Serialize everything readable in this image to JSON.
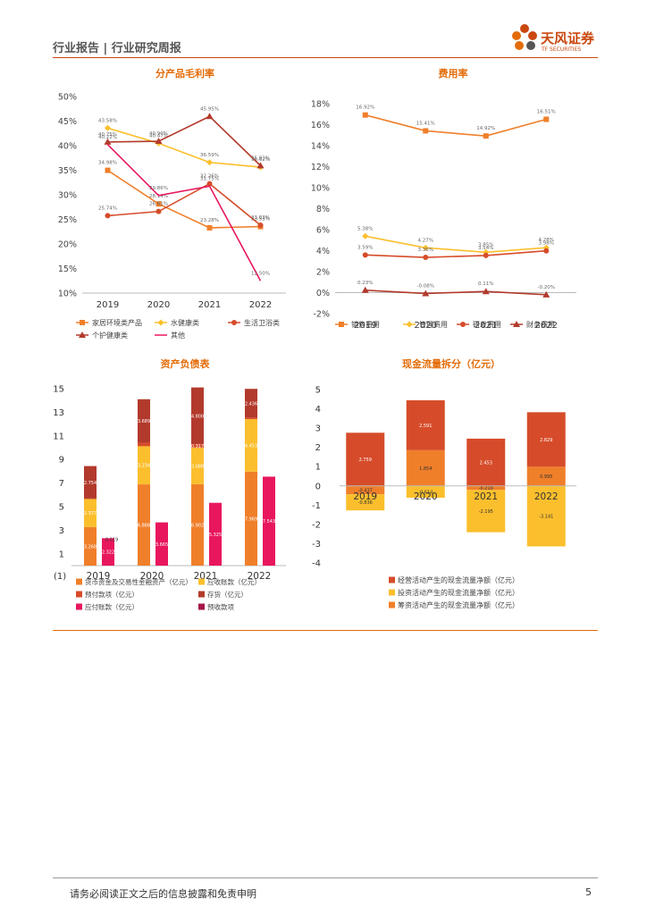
{
  "header": {
    "title": "行业报告 | 行业研究周报"
  },
  "logo": {
    "name_cn": "天风证券",
    "name_en": "TF SECURITIES"
  },
  "footer": {
    "disclaimer": "请务必阅读正文之后的信息披露和免责申明",
    "page": "5"
  },
  "colors": {
    "accent": "#e36c09",
    "brand": "#c9480f"
  },
  "chart_data": [
    {
      "id": "margin",
      "type": "line",
      "title": "分产品毛利率",
      "categories": [
        "2019",
        "2020",
        "2021",
        "2022"
      ],
      "y_ticks": [
        "50%",
        "45%",
        "40%",
        "35%",
        "30%",
        "25%",
        "20%",
        "15%",
        "10%"
      ],
      "ylim": [
        10,
        50
      ],
      "series": [
        {
          "name": "家居环境类产品",
          "color": "#f07f2a",
          "marker": "square",
          "values": [
            34.98,
            28.14,
            23.28,
            23.53
          ],
          "labels": [
            "34.98%",
            "28.14%",
            "23.28%",
            "23.53%"
          ]
        },
        {
          "name": "水健康类",
          "color": "#fbbf2d",
          "marker": "diamond",
          "values": [
            43.58,
            40.47,
            36.59,
            35.62
          ],
          "labels": [
            "43.58%",
            "40.47%",
            "36.59%",
            "35.62%"
          ]
        },
        {
          "name": "生活卫浴类",
          "color": "#d64c2a",
          "marker": "circle",
          "values": [
            25.74,
            26.61,
            32.26,
            23.82
          ],
          "labels": [
            "25.74%",
            "26.61%",
            "32.26%",
            "23.82%"
          ]
        },
        {
          "name": "个护健康类",
          "color": "#b23a2c",
          "marker": "triangle",
          "values": [
            40.75,
            40.9,
            45.95,
            35.93
          ],
          "labels": [
            "40.75%",
            "40.90%",
            "45.95%",
            "35.93%"
          ]
        },
        {
          "name": "其他",
          "color": "#e8175d",
          "marker": "none",
          "values": [
            40.22,
            29.86,
            31.75,
            12.5
          ],
          "labels": [
            "40.22%",
            "29.86%",
            "31.75%",
            "12.50%"
          ]
        }
      ]
    },
    {
      "id": "expense",
      "type": "line",
      "title": "费用率",
      "categories": [
        "2019",
        "2020",
        "2021",
        "2022"
      ],
      "y_ticks": [
        "18%",
        "16%",
        "14%",
        "12%",
        "10%",
        "8%",
        "6%",
        "4%",
        "2%",
        "0%",
        "-2%"
      ],
      "ylim": [
        -2,
        18
      ],
      "series": [
        {
          "name": "销售费用",
          "color": "#f07f2a",
          "marker": "square",
          "values": [
            16.92,
            15.41,
            14.92,
            16.51
          ],
          "labels": [
            "16.92%",
            "15.41%",
            "14.92%",
            "16.51%"
          ]
        },
        {
          "name": "管理费用",
          "color": "#fbbf2d",
          "marker": "diamond",
          "values": [
            5.38,
            4.27,
            3.85,
            4.28
          ],
          "labels": [
            "5.38%",
            "4.27%",
            "3.85%",
            "4.28%"
          ]
        },
        {
          "name": "研发费用",
          "color": "#d64c2a",
          "marker": "circle",
          "values": [
            3.59,
            3.36,
            3.54,
            3.98
          ],
          "labels": [
            "3.59%",
            "3.36%",
            "3.54%",
            "3.98%"
          ]
        },
        {
          "name": "财务费用",
          "color": "#b23a2c",
          "marker": "triangle",
          "values": [
            0.23,
            -0.08,
            0.11,
            -0.2
          ],
          "labels": [
            "0.23%",
            "-0.08%",
            "0.11%",
            "-0.20%"
          ]
        }
      ]
    },
    {
      "id": "balance",
      "type": "bar",
      "title": "资产负债表",
      "categories": [
        "2019",
        "2020",
        "2021",
        "2022"
      ],
      "unit_note": "(1)",
      "y_ticks": [
        "15",
        "13",
        "11",
        "9",
        "7",
        "5",
        "3",
        "1"
      ],
      "ylim": [
        0,
        15
      ],
      "stack": [
        {
          "name": "货币资金及交易性金融资产（亿元）",
          "color": "#f07f2a",
          "values": [
            3.268,
            6.888,
            6.902,
            7.969
          ],
          "labels": [
            "3.268",
            "6.888",
            "6.902",
            "7.969"
          ]
        },
        {
          "name": "应收账款（亿元）",
          "color": "#fbbf2d",
          "values": [
            2.377,
            3.234,
            3.088,
            4.453
          ],
          "labels": [
            "2.377",
            "3.234",
            "3.088",
            "4.453"
          ]
        },
        {
          "name": "预付款项（亿元）",
          "color": "#d64c2a",
          "values": [
            0.042,
            0.298,
            0.317,
            0.128
          ],
          "labels": [
            "0.042",
            "0.298",
            "0.317",
            "0.128"
          ]
        },
        {
          "name": "存货（亿元）",
          "color": "#b23a2c",
          "values": [
            2.754,
            3.689,
            4.8,
            2.436
          ],
          "labels": [
            "2.754",
            "3.689",
            "4.800",
            "2.436"
          ]
        }
      ],
      "side": {
        "name": "应付账款（亿元）",
        "color": "#e8175d",
        "values": [
          2.322,
          3.665,
          5.325,
          7.543
        ],
        "labels": [
          "2.322",
          "3.665",
          "5.325",
          "7.543"
        ]
      },
      "side_small": {
        "name": "预收款项",
        "color": "#a31348",
        "values": [
          0.019,
          0.0,
          0.0,
          0.0
        ],
        "labels": [
          "0.019",
          "",
          "",
          ""
        ]
      }
    },
    {
      "id": "cashflow",
      "type": "bar",
      "title": "现金流量拆分（亿元）",
      "categories": [
        "2019",
        "2020",
        "2021",
        "2022"
      ],
      "y_ticks": [
        "5",
        "4",
        "3",
        "2",
        "1",
        "0",
        "-1",
        "-2",
        "-3",
        "-4"
      ],
      "ylim": [
        -4,
        5
      ],
      "series": [
        {
          "name": "经营活动产生的现金流量净额（亿元）",
          "color": "#d64c2a",
          "values": [
            2.759,
            2.591,
            2.453,
            2.829
          ],
          "labels": [
            "2.759",
            "2.591",
            "2.453",
            "2.829"
          ]
        },
        {
          "name": "投资活动产生的现金流量净额（亿元）",
          "color": "#fbbf2d",
          "values": [
            -0.836,
            -0.614,
            -2.195,
            -3.141
          ],
          "labels": [
            "-0.836",
            "-0.614",
            "-2.195",
            "-3.141"
          ]
        },
        {
          "name": "筹资活动产生的现金流量净额（亿元）",
          "color": "#f07f2a",
          "values": [
            -0.437,
            1.854,
            -0.21,
            0.995
          ],
          "labels": [
            "-0.437",
            "1.854",
            "-0.210",
            "0.995"
          ]
        }
      ]
    }
  ]
}
